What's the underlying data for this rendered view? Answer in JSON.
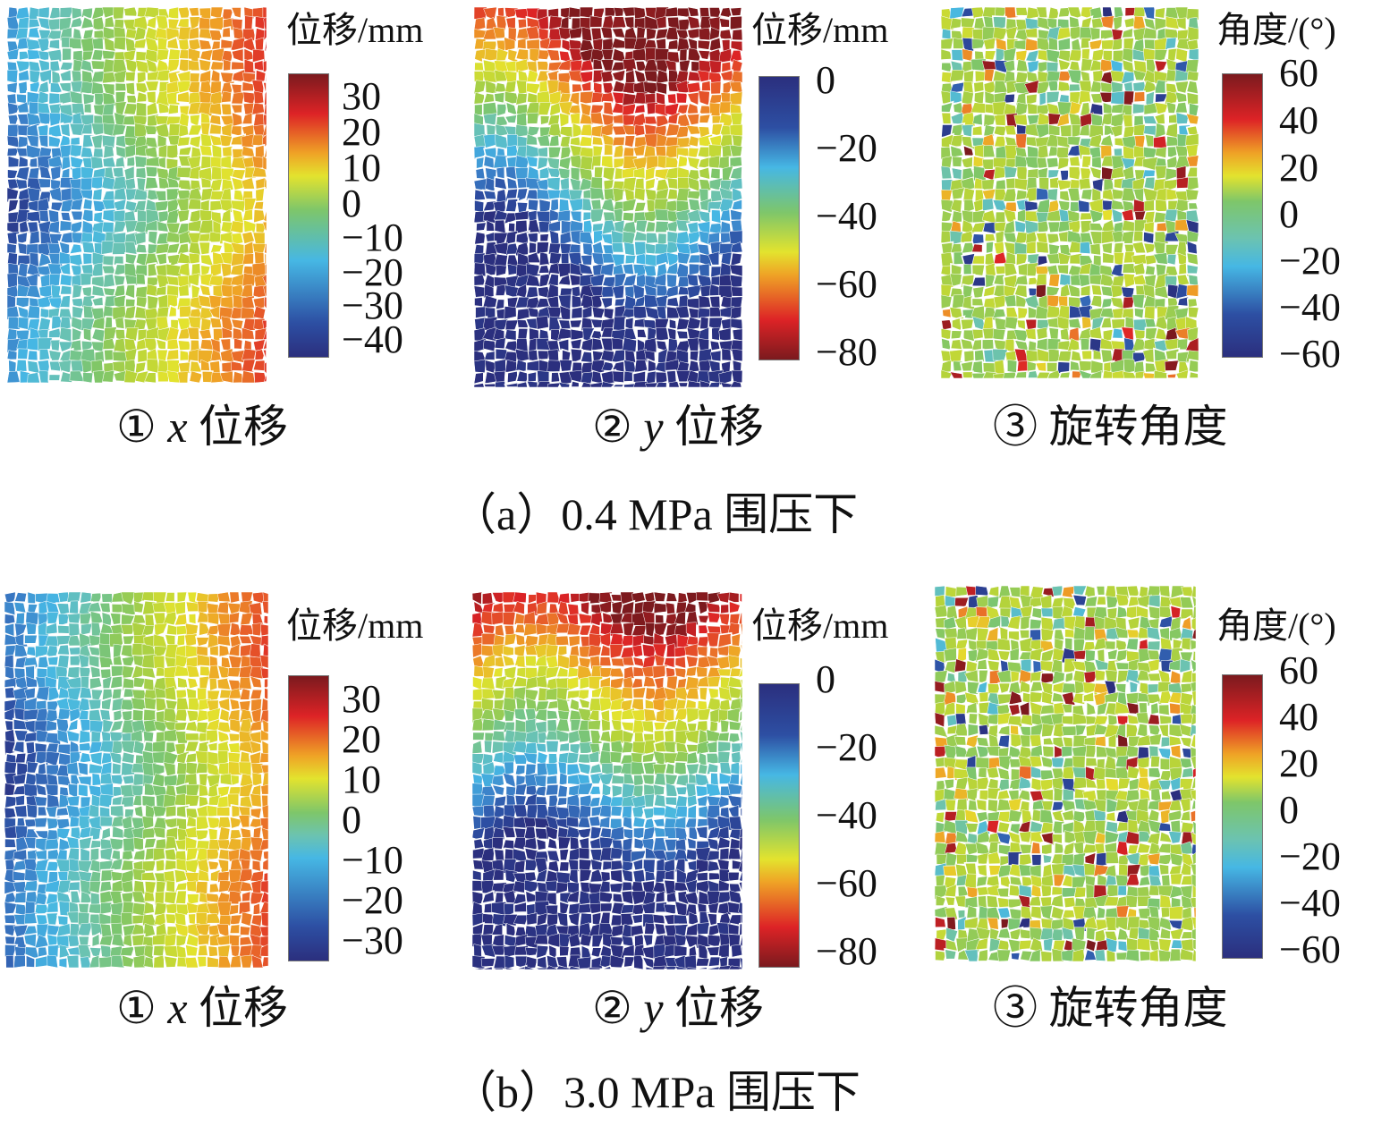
{
  "figure": {
    "groups": [
      {
        "caption": "（a）0.4 MPa 围压下",
        "panels": [
          {
            "marker": "①",
            "var": "x",
            "label": "位移",
            "colorbar": {
              "title": "位移/mm",
              "ticks": [
                "30",
                "20",
                "10",
                "0",
                "−10",
                "−20",
                "−30",
                "−40"
              ]
            }
          },
          {
            "marker": "②",
            "var": "y",
            "label": "位移",
            "colorbar": {
              "title": "位移/mm",
              "ticks": [
                "0",
                "−20",
                "−40",
                "−60",
                "−80"
              ]
            }
          },
          {
            "marker": "③",
            "var": "",
            "label": "旋转角度",
            "colorbar": {
              "title": "角度/(°)",
              "ticks": [
                "60",
                "40",
                "20",
                "0",
                "−20",
                "−40",
                "−60"
              ]
            }
          }
        ]
      },
      {
        "caption": "（b）3.0 MPa 围压下",
        "panels": [
          {
            "marker": "①",
            "var": "x",
            "label": "位移",
            "colorbar": {
              "title": "位移/mm",
              "ticks": [
                "30",
                "20",
                "10",
                "0",
                "−10",
                "−20",
                "−30"
              ]
            }
          },
          {
            "marker": "②",
            "var": "y",
            "label": "位移",
            "colorbar": {
              "title": "位移/mm",
              "ticks": [
                "0",
                "−20",
                "−40",
                "−60",
                "−80"
              ]
            }
          },
          {
            "marker": "③",
            "var": "",
            "label": "旋转角度",
            "colorbar": {
              "title": "角度/(°)",
              "ticks": [
                "60",
                "40",
                "20",
                "0",
                "−20",
                "−40",
                "−60"
              ]
            }
          }
        ]
      }
    ]
  },
  "chart_data": [
    {
      "type": "heatmap",
      "title": "①x位移 (a) 0.4 MPa",
      "colorbar_label": "位移/mm",
      "range": [
        -45,
        36
      ],
      "colormap": "jet",
      "pattern": "diagonal gradient, negative (blue) left to positive (red) right"
    },
    {
      "type": "heatmap",
      "title": "②y位移 (a) 0.4 MPa",
      "colorbar_label": "位移/mm",
      "range": [
        -85,
        0
      ],
      "colormap": "jet_reversed",
      "pattern": "-80 (dark red) top to 0 (blue) bottom"
    },
    {
      "type": "heatmap",
      "title": "③旋转角度 (a) 0.4 MPa",
      "colorbar_label": "角度/(°)",
      "range": [
        -60,
        60
      ],
      "colormap": "jet",
      "pattern": "mostly near 0 with scattered extremes along shear band"
    },
    {
      "type": "heatmap",
      "title": "①x位移 (b) 3.0 MPa",
      "colorbar_label": "位移/mm",
      "range": [
        -35,
        35
      ],
      "colormap": "jet",
      "pattern": "diagonal gradient, negative left to positive right"
    },
    {
      "type": "heatmap",
      "title": "②y位移 (b) 3.0 MPa",
      "colorbar_label": "位移/mm",
      "range": [
        -85,
        0
      ],
      "colormap": "jet_reversed",
      "pattern": "-80 top to 0 bottom"
    },
    {
      "type": "heatmap",
      "title": "③旋转角度 (b) 3.0 MPa",
      "colorbar_label": "角度/(°)",
      "range": [
        -60,
        60
      ],
      "colormap": "jet",
      "pattern": "mostly near 0 with scattered extremes"
    }
  ],
  "colors": {
    "jet": [
      "#2b2f7e",
      "#2d4fa3",
      "#3b7fc8",
      "#46b7e4",
      "#6cc3b0",
      "#7ec66a",
      "#b5d33a",
      "#e3e32e",
      "#efa326",
      "#e8612a",
      "#dd2326",
      "#7b1a1e"
    ]
  }
}
